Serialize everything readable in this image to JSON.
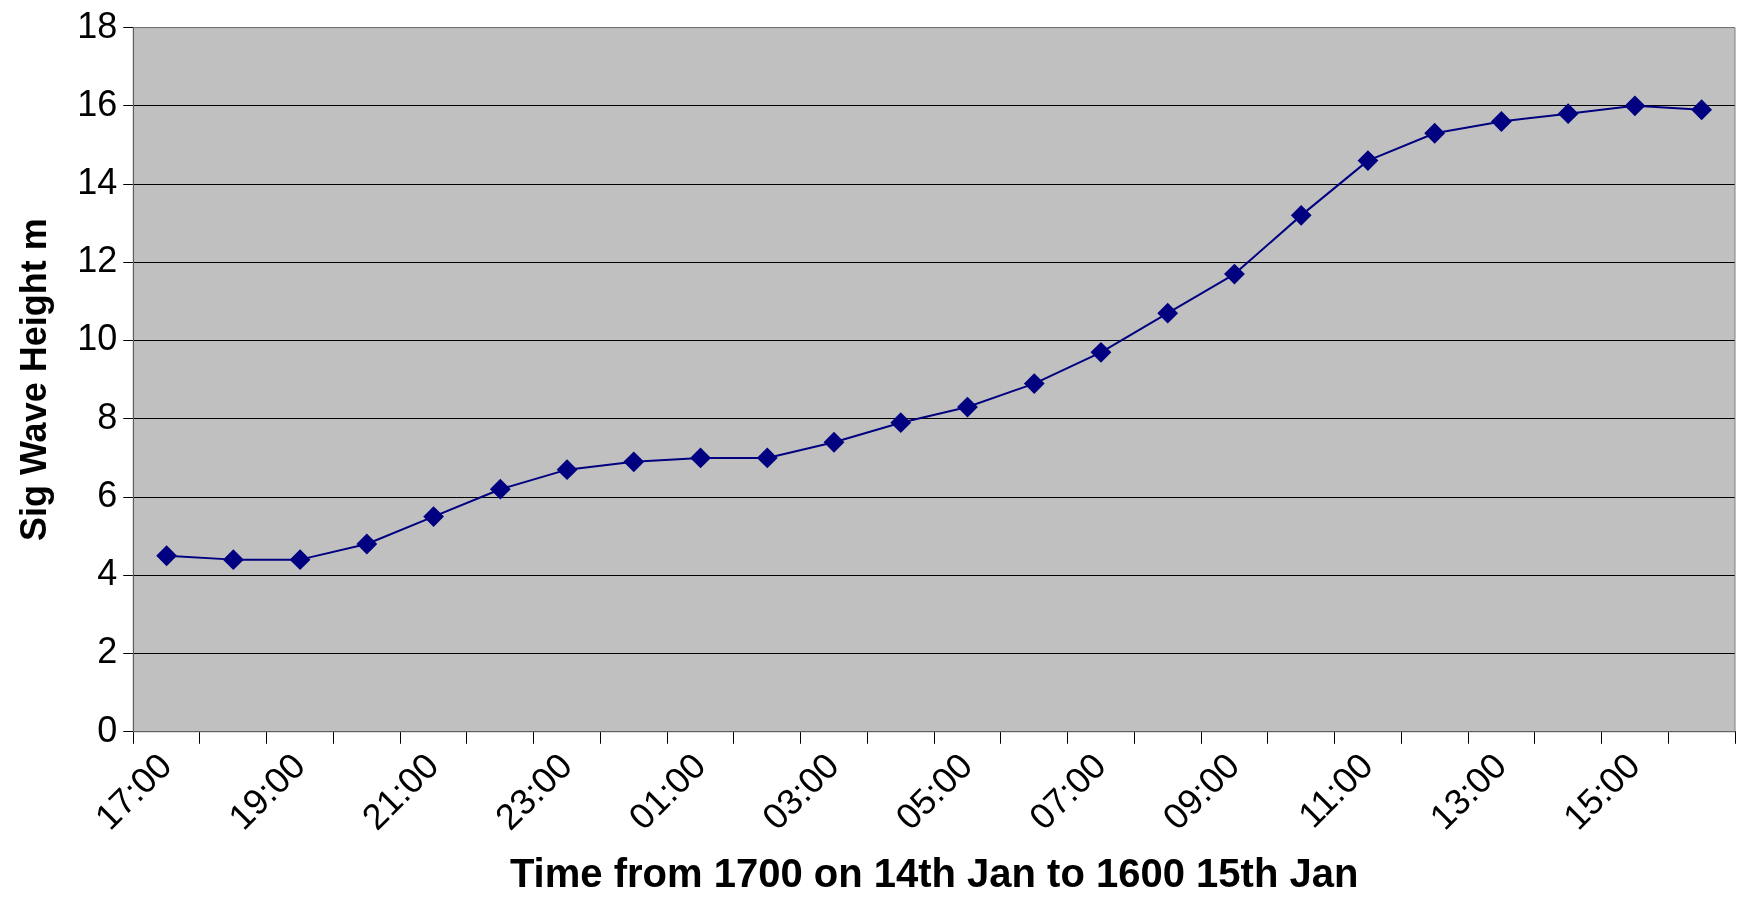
{
  "chart_data": {
    "type": "line",
    "xlabel": "Time from 1700 on 14th Jan to 1600 15th Jan",
    "ylabel": "Sig Wave Height m",
    "categories": [
      "17:00",
      null,
      "19:00",
      null,
      "21:00",
      null,
      "23:00",
      null,
      "01:00",
      null,
      "03:00",
      null,
      "05:00",
      null,
      "07:00",
      null,
      "09:00",
      null,
      "11:00",
      null,
      "13:00",
      null,
      "15:00",
      null
    ],
    "series": [
      {
        "color": "#000080",
        "values": [
          4.5,
          4.4,
          4.4,
          4.8,
          5.5,
          6.2,
          6.7,
          6.9,
          7.0,
          7.0,
          7.4,
          7.9,
          8.3,
          8.9,
          9.7,
          10.7,
          11.7,
          13.2,
          14.6,
          15.3,
          15.6,
          15.8,
          16.0,
          15.9
        ]
      }
    ],
    "ylim": [
      0,
      18
    ],
    "yticks": [
      0,
      2,
      4,
      6,
      8,
      10,
      12,
      14,
      16,
      18
    ],
    "grid": "y",
    "legend": false,
    "marker": "diamond",
    "line_style": "solid"
  }
}
